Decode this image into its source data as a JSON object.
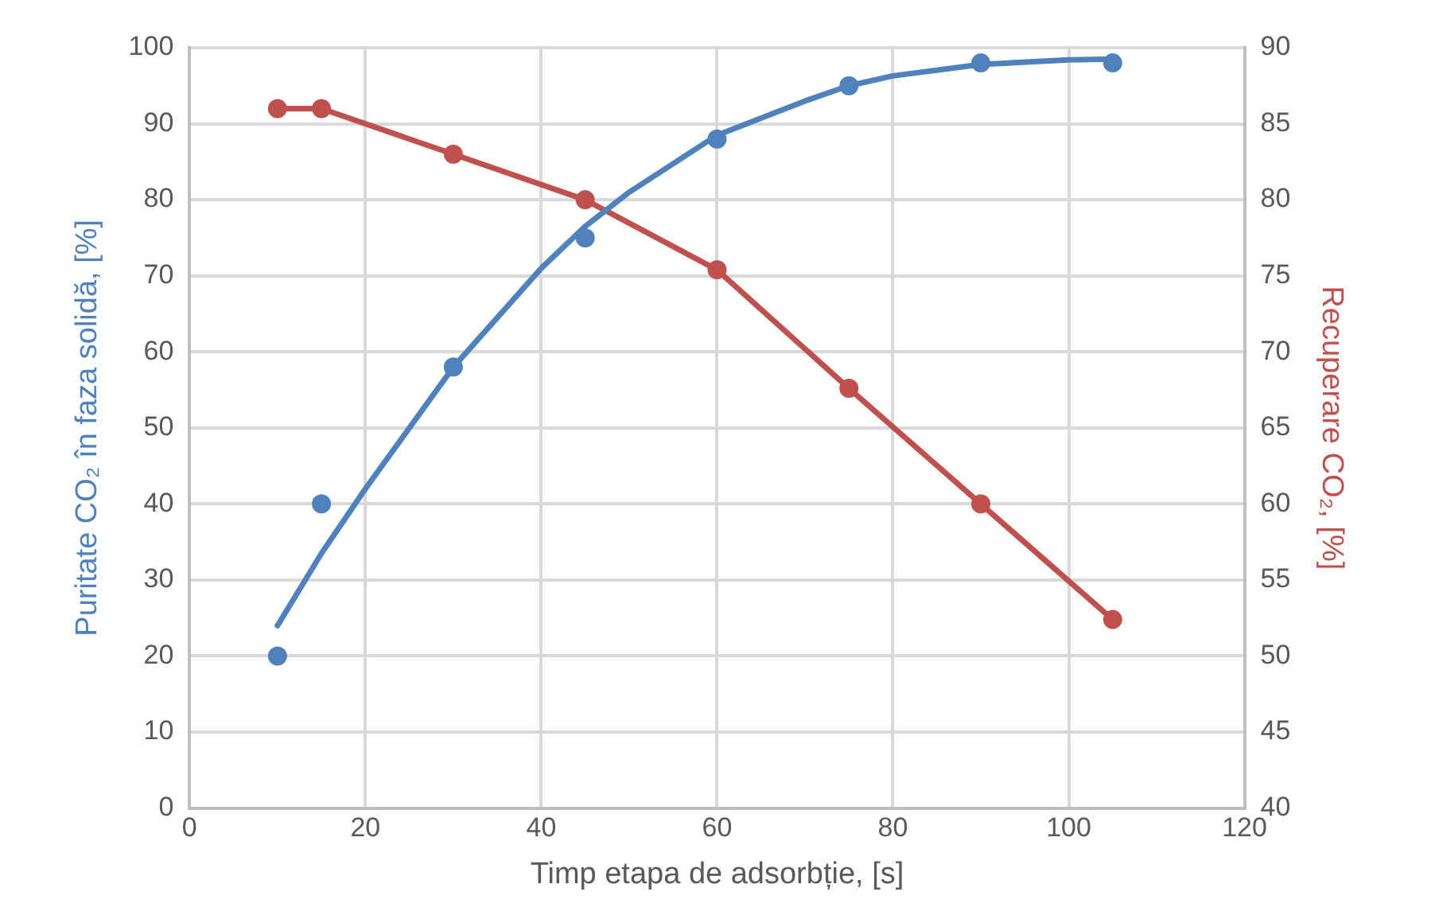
{
  "chart_data": {
    "type": "scatter",
    "xlabel": "Timp etapa de adsorbție, [s]",
    "ylabel": "Puritate CO₂ în faza solidă, [%]",
    "y2label": "Recuperare CO₂, [%]",
    "x": [
      10,
      15,
      30,
      45,
      60,
      75,
      90,
      105
    ],
    "series": [
      {
        "type": "scatter",
        "color": "#4f81bd",
        "marker": "circle",
        "values": [
          20,
          40,
          58,
          75,
          88,
          95,
          98,
          98
        ]
      },
      {
        "type": "line",
        "color": "#4f81bd",
        "marker": "none",
        "x": [
          10,
          15,
          20,
          30,
          40,
          45,
          50,
          60,
          70,
          75,
          80,
          90,
          100,
          105
        ],
        "values": [
          24,
          33.5,
          42,
          58,
          71,
          76.5,
          81,
          88.5,
          93,
          95,
          96.3,
          97.8,
          98.4,
          98.5
        ]
      },
      {
        "type": "line",
        "color": "#c0504d",
        "marker": "circle",
        "axis": "y2",
        "values": [
          86,
          86,
          83,
          80,
          75.4,
          67.6,
          60,
          52.4
        ]
      }
    ],
    "xlim": [
      0,
      120
    ],
    "xticks": [
      0,
      20,
      40,
      60,
      80,
      100,
      120
    ],
    "ylim": [
      0,
      100
    ],
    "yticks": [
      0,
      10,
      20,
      30,
      40,
      50,
      60,
      70,
      80,
      90,
      100
    ],
    "y2lim": [
      40,
      90
    ],
    "y2ticks": [
      40,
      45,
      50,
      55,
      60,
      65,
      70,
      75,
      80,
      85,
      90
    ],
    "grid": true
  }
}
